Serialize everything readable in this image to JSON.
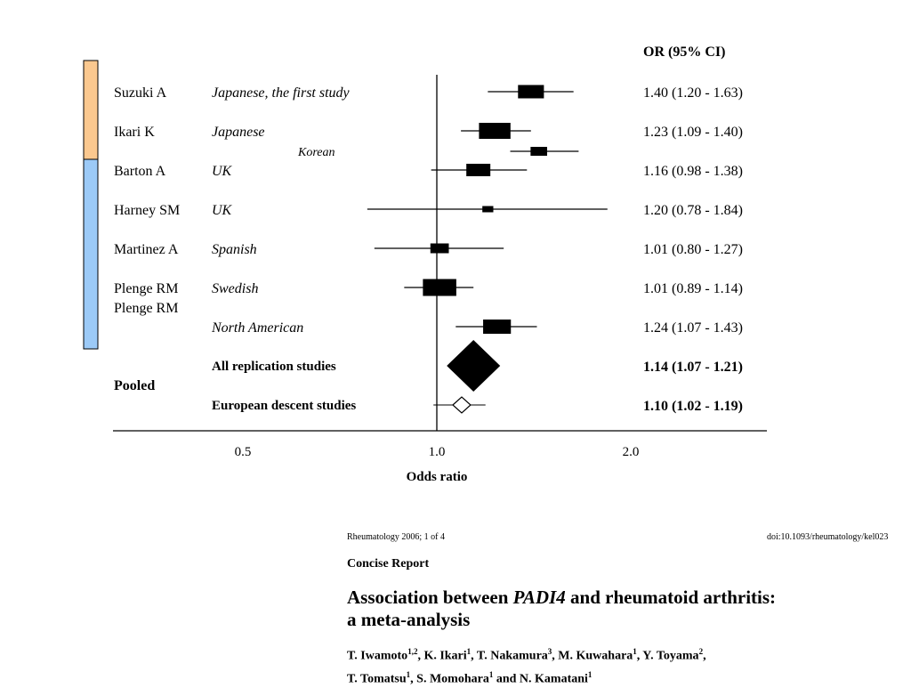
{
  "chart_data": {
    "type": "forest",
    "header": "OR (95% CI)",
    "xlabel": "Odds ratio",
    "x_ticks": [
      0.5,
      1.0,
      2.0
    ],
    "x_tick_labels": [
      "0.5",
      "1.0",
      "2.0"
    ],
    "xlim": [
      0.42,
      2.5
    ],
    "reference_line": 1.0,
    "groups": [
      {
        "color": "#fbc88f",
        "rows": [
          0,
          1
        ]
      },
      {
        "color": "#9ccaf7",
        "rows": [
          2,
          3,
          4,
          5,
          6
        ]
      }
    ],
    "studies": [
      {
        "author": "Suzuki A",
        "population": "Japanese, the first study",
        "or": 1.4,
        "lo": 1.2,
        "hi": 1.63,
        "label": "1.40 (1.20 - 1.63)",
        "weight": 0.55
      },
      {
        "author": "Ikari K",
        "population": "Japanese",
        "or": 1.23,
        "lo": 1.09,
        "hi": 1.4,
        "label": "1.23 (1.09 - 1.40)",
        "weight": 0.7
      },
      {
        "author": "",
        "population": "Korean",
        "or": 1.44,
        "lo": 1.3,
        "hi": 1.66,
        "label": "",
        "weight": 0.3
      },
      {
        "author": "Barton A",
        "population": "UK",
        "or": 1.16,
        "lo": 0.98,
        "hi": 1.38,
        "label": "1.16 (0.98 - 1.38)",
        "weight": 0.5
      },
      {
        "author": "Harney SM",
        "population": "UK",
        "or": 1.2,
        "lo": 0.78,
        "hi": 1.84,
        "label": "1.20 (0.78 - 1.84)",
        "weight": 0.15
      },
      {
        "author": "Martinez A",
        "population": "Spanish",
        "or": 1.01,
        "lo": 0.8,
        "hi": 1.27,
        "label": "1.01 (0.80 - 1.27)",
        "weight": 0.35
      },
      {
        "author": "Plenge RM",
        "population": "Swedish",
        "or": 1.01,
        "lo": 0.89,
        "hi": 1.14,
        "label": "1.01 (0.89 - 1.14)",
        "weight": 0.75
      },
      {
        "author": "",
        "population": "North American",
        "or": 1.24,
        "lo": 1.07,
        "hi": 1.43,
        "label": "1.24 (1.07 - 1.43)",
        "weight": 0.6
      }
    ],
    "pooled_label": "Pooled",
    "pooled": [
      {
        "name": "All replication studies",
        "or": 1.14,
        "lo": 1.07,
        "hi": 1.21,
        "label": "1.14 (1.07 - 1.21)",
        "filled": true
      },
      {
        "name": "European descent studies",
        "or": 1.1,
        "lo": 1.02,
        "hi": 1.19,
        "label": "1.10 (1.02 - 1.19)",
        "filled": false
      }
    ]
  },
  "paper": {
    "journal_line": "Rheumatology 2006; 1 of 4",
    "doi": "doi:10.1093/rheumatology/kel023",
    "section": "Concise Report",
    "title_pre": "Association between ",
    "title_gene": "PADI4",
    "title_post": " and rheumatoid arthritis:",
    "title_line2": "a meta-analysis",
    "authors": [
      {
        "name": "T. Iwamoto",
        "sup": "1,2",
        "sep": ", "
      },
      {
        "name": "K. Ikari",
        "sup": "1",
        "sep": ", "
      },
      {
        "name": "T. Nakamura",
        "sup": "3",
        "sep": ", "
      },
      {
        "name": "M. Kuwahara",
        "sup": "1",
        "sep": ", "
      },
      {
        "name": "Y. Toyama",
        "sup": "2",
        "sep": ","
      },
      {
        "name": "T. Tomatsu",
        "sup": "1",
        "sep": ", "
      },
      {
        "name": "S. Momohara",
        "sup": "1",
        "sep": " and "
      },
      {
        "name": "N. Kamatani",
        "sup": "1",
        "sep": ""
      }
    ]
  }
}
